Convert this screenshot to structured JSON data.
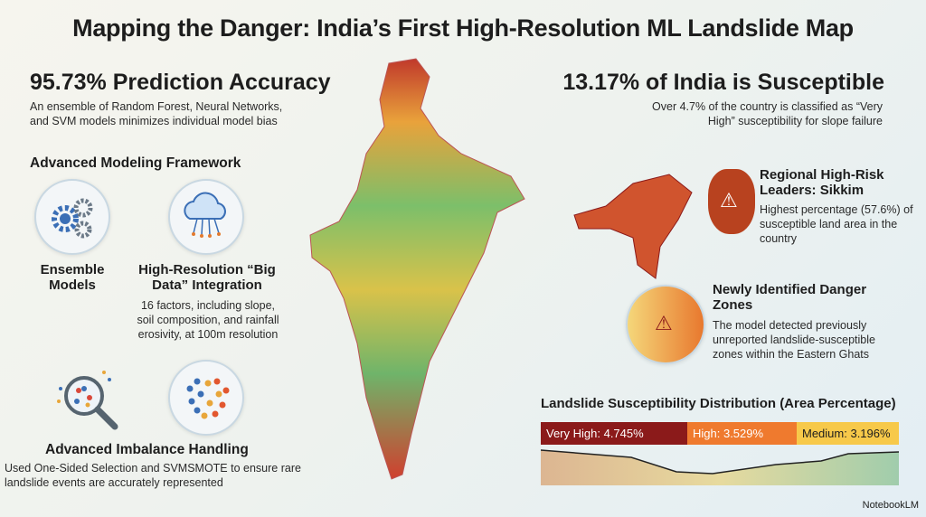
{
  "title": "Mapping the Danger: India’s First High-Resolution ML Landslide Map",
  "accuracy": {
    "headline": "95.73% Prediction Accuracy",
    "text": "An ensemble of Random Forest, Neural Networks, and SVM models minimizes individual model bias"
  },
  "framework": {
    "heading": "Advanced Modeling Framework",
    "ensemble": {
      "label": "Ensemble Models"
    },
    "bigdata": {
      "label": "High-Resolution “Big Data” Integration",
      "text": "16 factors, including slope, soil composition, and rainfall erosivity, at 100m resolution"
    },
    "imbalance": {
      "label": "Advanced Imbalance Handling",
      "text": "Used One-Sided Selection and SVMSMOTE to ensure rare landslide events are accurately represented"
    }
  },
  "susceptible": {
    "headline": "13.17% of India is Susceptible",
    "text": "Over 4.7% of the country is classified as “Very High” susceptibility for slope failure"
  },
  "sikkim": {
    "heading": "Regional High-Risk Leaders: Sikkim",
    "text": "Highest percentage (57.6%) of susceptible land area in the country"
  },
  "ghats": {
    "heading": "Newly Identified Danger Zones",
    "text": "The model detected previously unreported landslide-susceptible zones within the Eastern Ghats"
  },
  "distribution": {
    "heading": "Landslide Susceptibility Distribution (Area Percentage)",
    "segments": [
      {
        "label": "Very High: 4.745%",
        "value": 4.745,
        "color": "#8b1a1a"
      },
      {
        "label": "High: 3.529%",
        "value": 3.529,
        "color": "#ef7a2e"
      },
      {
        "label": "Medium: 3.196%",
        "value": 3.196,
        "color": "#f7c94a"
      }
    ]
  },
  "brand": "NotebookLM"
}
